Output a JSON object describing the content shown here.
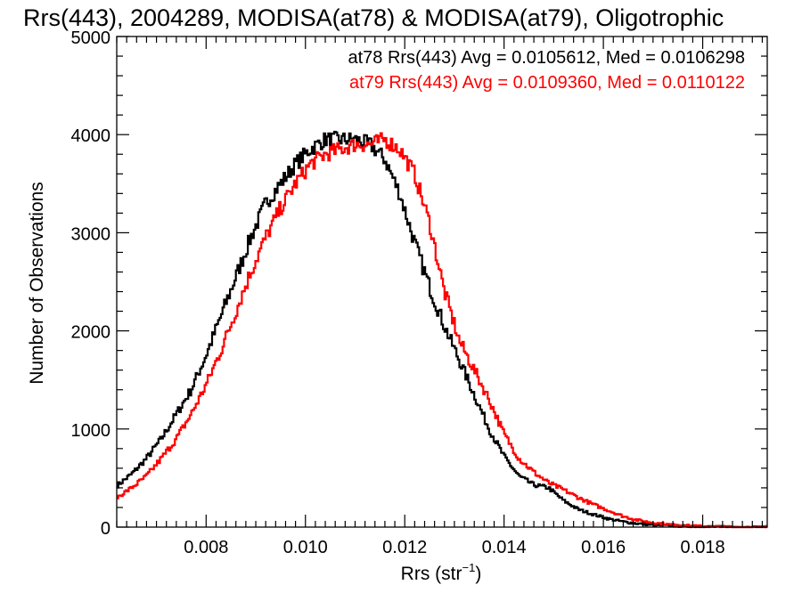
{
  "chart_data": {
    "type": "line",
    "title": "Rrs(443), 2004289, MODISA(at78) & MODISA(at79), Oligotrophic",
    "xlabel": "Rrs (str",
    "xlabel_sup": "−1",
    "xlabel_close": ")",
    "ylabel": "Number of Observations",
    "xlim": [
      0.0062,
      0.0193
    ],
    "ylim": [
      0,
      5000
    ],
    "xticks": [
      0.008,
      0.01,
      0.012,
      0.014,
      0.016,
      0.018
    ],
    "xtick_labels": [
      "0.008",
      "0.010",
      "0.012",
      "0.014",
      "0.016",
      "0.018"
    ],
    "yticks": [
      0,
      1000,
      2000,
      3000,
      4000,
      5000
    ],
    "ytick_labels": [
      "0",
      "1000",
      "2000",
      "3000",
      "4000",
      "5000"
    ],
    "grid": false,
    "legend_placement": "top-right",
    "legend": [
      {
        "text": "at78 Rrs(443) Avg = 0.0105612, Med = 0.0106298",
        "color": "#000000"
      },
      {
        "text": "at79 Rrs(443) Avg = 0.0109360, Med = 0.0110122",
        "color": "#ff0000"
      }
    ],
    "series": [
      {
        "color": "#000000",
        "x": [
          0.0062,
          0.0065,
          0.0068,
          0.0071,
          0.0074,
          0.0077,
          0.008,
          0.0083,
          0.0086,
          0.0089,
          0.0092,
          0.0095,
          0.0098,
          0.0101,
          0.0104,
          0.0107,
          0.011,
          0.0113,
          0.0116,
          0.0119,
          0.0122,
          0.0125,
          0.0128,
          0.0131,
          0.0134,
          0.0137,
          0.014,
          0.0143,
          0.0146,
          0.0149,
          0.0152,
          0.0155,
          0.0158,
          0.0161,
          0.0164,
          0.0167,
          0.017,
          0.0173,
          0.0176,
          0.0179,
          0.0182,
          0.0185,
          0.0188,
          0.0193
        ],
        "y": [
          420,
          540,
          700,
          900,
          1150,
          1400,
          1750,
          2150,
          2550,
          2950,
          3300,
          3500,
          3700,
          3850,
          3950,
          3950,
          3950,
          3900,
          3750,
          3400,
          2900,
          2450,
          2050,
          1700,
          1350,
          1000,
          720,
          520,
          430,
          400,
          270,
          180,
          130,
          85,
          55,
          35,
          22,
          15,
          10,
          6,
          4,
          2,
          1,
          0
        ]
      },
      {
        "color": "#ff0000",
        "x": [
          0.0062,
          0.0065,
          0.0068,
          0.0071,
          0.0074,
          0.0077,
          0.008,
          0.0083,
          0.0086,
          0.0089,
          0.0092,
          0.0095,
          0.0098,
          0.0101,
          0.0104,
          0.0107,
          0.011,
          0.0113,
          0.0116,
          0.0119,
          0.0122,
          0.0125,
          0.0128,
          0.0131,
          0.0134,
          0.0137,
          0.014,
          0.0143,
          0.0146,
          0.0149,
          0.0152,
          0.0155,
          0.0158,
          0.0161,
          0.0164,
          0.0167,
          0.017,
          0.0173,
          0.0176,
          0.0179,
          0.0182,
          0.0185,
          0.0188,
          0.0193
        ],
        "y": [
          300,
          400,
          520,
          700,
          900,
          1150,
          1450,
          1800,
          2200,
          2600,
          2950,
          3250,
          3500,
          3700,
          3800,
          3850,
          3900,
          3900,
          3950,
          3850,
          3600,
          3100,
          2400,
          1900,
          1600,
          1300,
          950,
          700,
          560,
          450,
          380,
          300,
          230,
          170,
          110,
          70,
          45,
          28,
          18,
          10,
          6,
          3,
          1,
          0
        ]
      }
    ]
  }
}
